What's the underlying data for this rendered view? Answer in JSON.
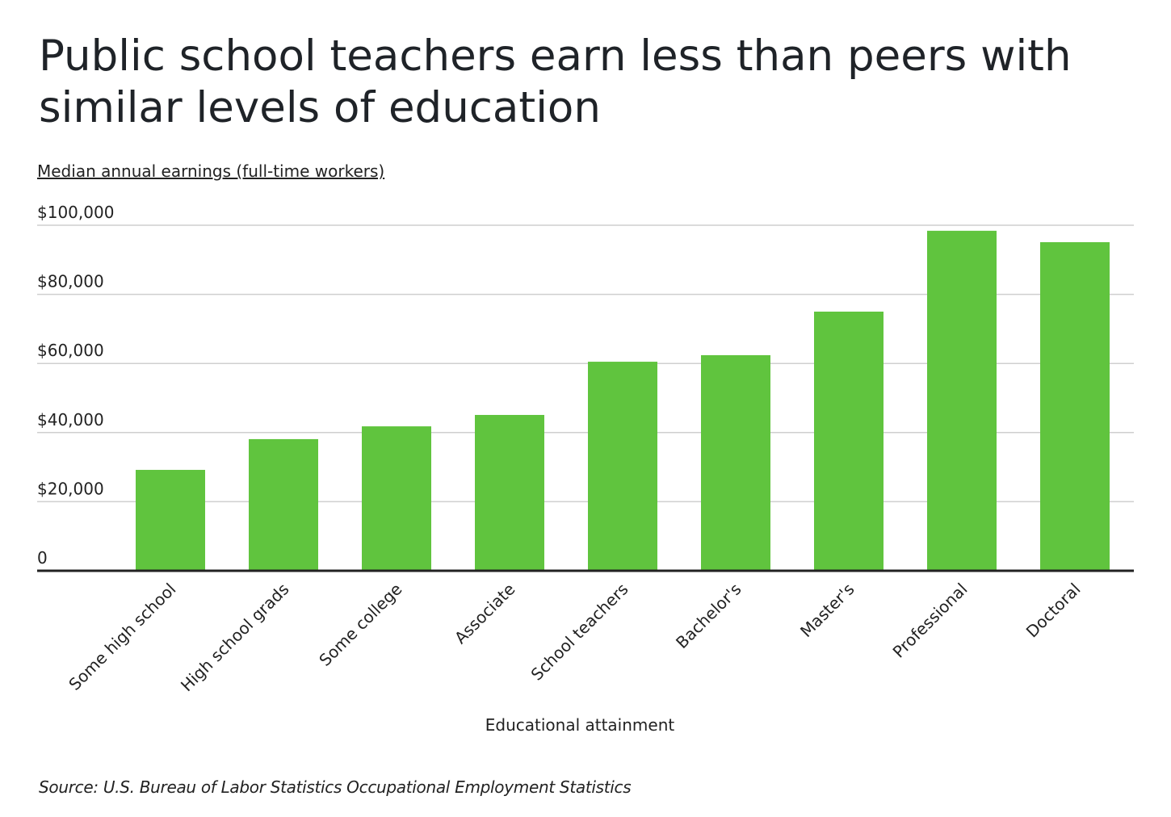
{
  "chart_data": {
    "type": "bar",
    "title": "Public school teachers earn less than peers with similar levels of education",
    "subtitle": "Median annual earnings (full-time workers)",
    "x_label": "Educational attainment",
    "source": "Source:  U.S. Bureau of Labor Statistics Occupational Employment Statistics",
    "categories": [
      "Some high school",
      "High school grads",
      "Some college",
      "Associate",
      "School teachers",
      "Bachelor's",
      "Master's",
      "Professional",
      "Doctoral"
    ],
    "values": [
      29200,
      38100,
      41800,
      45100,
      60500,
      62400,
      75000,
      98400,
      95100
    ],
    "color": "#60c43e",
    "ylim": [
      0,
      100000
    ],
    "yticks": [
      0,
      {
        "value": 20000,
        "label": "$20,000"
      },
      {
        "value": 40000,
        "label": "$40,000"
      },
      {
        "value": 60000,
        "label": "$60,000"
      },
      {
        "value": 80000,
        "label": "$80,000"
      },
      {
        "value": 100000,
        "label": "$100,000"
      }
    ],
    "grid": true
  }
}
